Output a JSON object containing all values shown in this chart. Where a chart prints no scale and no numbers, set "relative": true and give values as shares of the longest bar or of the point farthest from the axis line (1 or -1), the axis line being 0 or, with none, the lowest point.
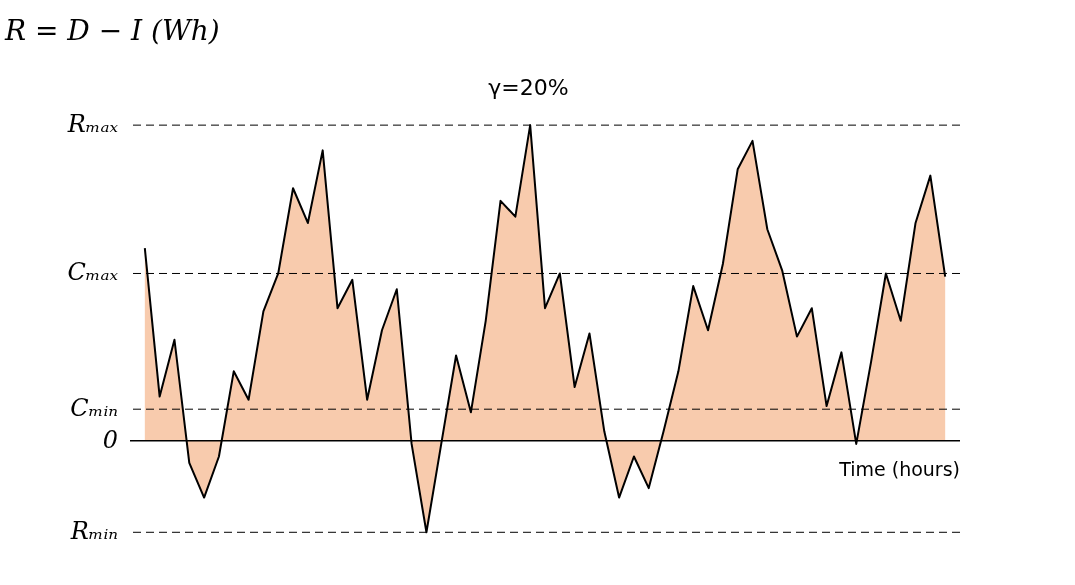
{
  "chart_data": {
    "type": "area",
    "relative": true,
    "ylabel": "R = D − I (Wh)",
    "xlabel": "Time (hours)",
    "categories": [
      null,
      null,
      null,
      null,
      null,
      null,
      null,
      null,
      null,
      null,
      null,
      null,
      null,
      null,
      null,
      null,
      null,
      null,
      null,
      null,
      null,
      null,
      null,
      null,
      null,
      null,
      null,
      null,
      null,
      null,
      null,
      null,
      null,
      null,
      null,
      null,
      null,
      null,
      null,
      null,
      null,
      null,
      null,
      null,
      null,
      null,
      null,
      null,
      null,
      null,
      null,
      null,
      null,
      null,
      null
    ],
    "series": [
      {
        "color": "#f8cbad",
        "values": [
          0.61,
          0.14,
          0.32,
          -0.07,
          -0.18,
          -0.05,
          0.22,
          0.13,
          0.41,
          0.53,
          0.8,
          0.69,
          0.92,
          0.42,
          0.51,
          0.13,
          0.35,
          0.48,
          -0.01,
          -0.29,
          -0.01,
          0.27,
          0.09,
          0.38,
          0.76,
          0.71,
          1,
          0.42,
          0.53,
          0.17,
          0.34,
          0.03,
          -0.18,
          -0.05,
          -0.15,
          0.03,
          0.22,
          0.49,
          0.35,
          0.56,
          0.86,
          0.95,
          0.67,
          0.54,
          0.33,
          0.42,
          0.11,
          0.28,
          -0.01,
          0.25,
          0.53,
          0.38,
          0.69,
          0.84,
          0.52
        ]
      }
    ],
    "ref_lines": [
      {
        "axis": "y",
        "value": 1,
        "label": "Rₘₐₓ",
        "line_style": "dashed"
      },
      {
        "axis": "y",
        "value": 0.53,
        "label": "Cₘₐₓ",
        "line_style": "dashed"
      },
      {
        "axis": "y",
        "value": 0.1,
        "label": "Cₘᵢₙ",
        "line_style": "dashed"
      },
      {
        "axis": "y",
        "value": 0,
        "label": "0",
        "line_style": "solid"
      },
      {
        "axis": "y",
        "value": -0.29,
        "label": "Rₘᵢₙ",
        "line_style": "dashed"
      }
    ],
    "annotations": [
      "γ=20%"
    ]
  }
}
